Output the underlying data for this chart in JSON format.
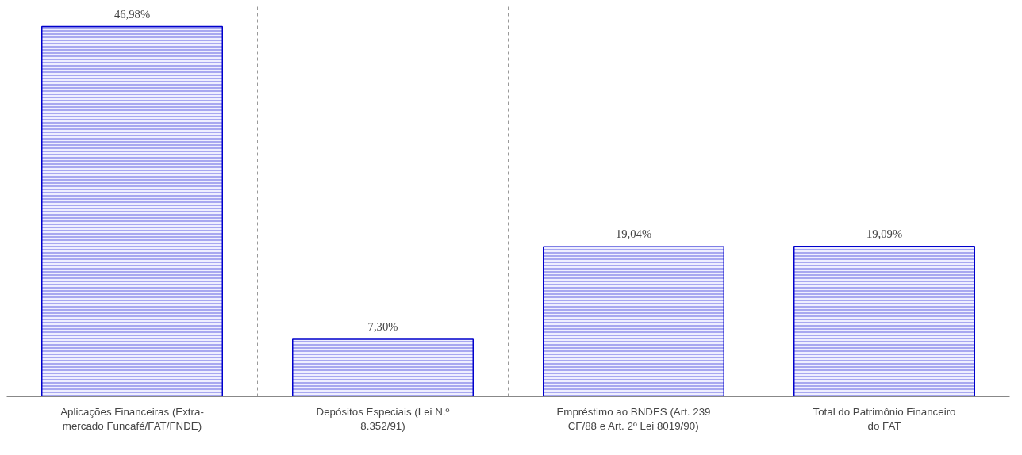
{
  "chart_data": {
    "type": "bar",
    "categories": [
      "Aplicações Financeiras (Extra-mercado Funcafé/FAT/FNDE)",
      "Depósitos Especiais (Lei N.º 8.352/91)",
      "Empréstimo ao BNDES (Art. 239 CF/88 e Art. 2º Lei 8019/90)",
      "Total do Patrimônio Financeiro do FAT"
    ],
    "values": [
      46.98,
      7.3,
      19.04,
      19.09
    ],
    "value_labels": [
      "46,98%",
      "7,30%",
      "19,04%",
      "19,09%"
    ],
    "color": "#0000cc",
    "grid": "x"
  }
}
